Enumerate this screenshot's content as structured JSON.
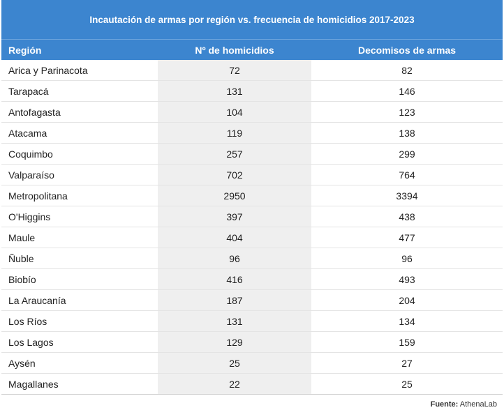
{
  "chart_data": {
    "type": "table",
    "title": "Incautación de armas por región vs. frecuencia de homicidios 2017-2023",
    "columns": [
      "Región",
      "Nº de homicidios",
      "Decomisos de armas"
    ],
    "rows": [
      [
        "Arica y Parinacota",
        "72",
        "82"
      ],
      [
        "Tarapacá",
        "131",
        "146"
      ],
      [
        "Antofagasta",
        "104",
        "123"
      ],
      [
        "Atacama",
        "119",
        "138"
      ],
      [
        "Coquimbo",
        "257",
        "299"
      ],
      [
        "Valparaíso",
        "702",
        "764"
      ],
      [
        "Metropolitana",
        "2950",
        "3394"
      ],
      [
        "O'Higgins",
        "397",
        "438"
      ],
      [
        "Maule",
        "404",
        "477"
      ],
      [
        "Ñuble",
        "96",
        "96"
      ],
      [
        "Biobío",
        "416",
        "493"
      ],
      [
        "La Araucanía",
        "187",
        "204"
      ],
      [
        "Los Ríos",
        "131",
        "134"
      ],
      [
        "Los Lagos",
        "129",
        "159"
      ],
      [
        "Aysén",
        "25",
        "27"
      ],
      [
        "Magallanes",
        "22",
        "25"
      ]
    ],
    "source_label": "Fuente:",
    "source_value": "AthenaLab"
  },
  "colors": {
    "header_bg": "#3c85cf",
    "header_text": "#ffffff",
    "highlight_column_bg": "#efefef",
    "row_border": "#e4e4e4"
  }
}
